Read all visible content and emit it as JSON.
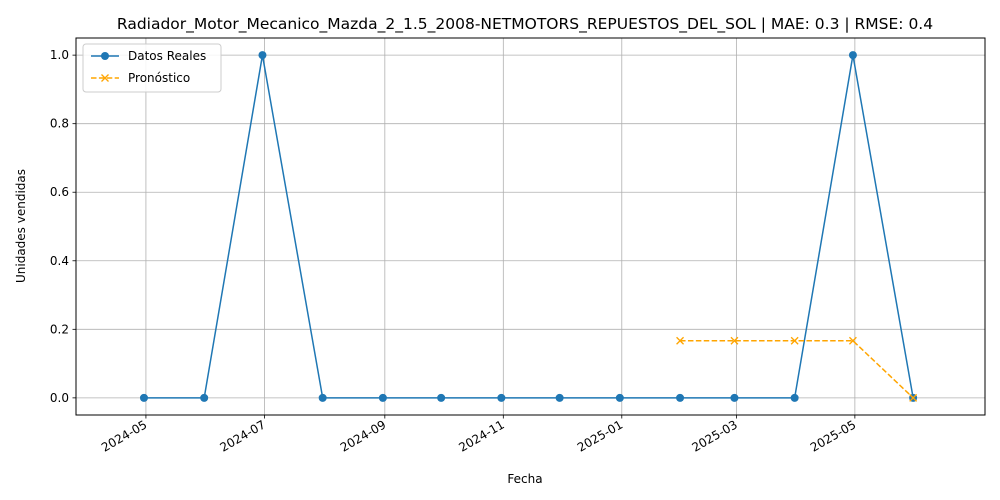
{
  "chart_data": {
    "type": "line",
    "title": "Radiador_Motor_Mecanico_Mazda_2_1.5_2008-NETMOTORS_REPUESTOS_DEL_SOL | MAE: 0.3 | RMSE: 0.4",
    "xlabel": "Fecha",
    "ylabel": "Unidades vendidas",
    "ylim": [
      -0.05,
      1.05
    ],
    "y_ticks": [
      0.0,
      0.2,
      0.4,
      0.6,
      0.8,
      1.0
    ],
    "y_tick_labels": [
      "0.0",
      "0.2",
      "0.4",
      "0.6",
      "0.8",
      "1.0"
    ],
    "x_ticks": [
      "2024-05-01",
      "2024-07-01",
      "2024-09-01",
      "2024-11-01",
      "2025-01-01",
      "2025-03-01",
      "2025-05-01"
    ],
    "x_tick_labels": [
      "2024-05",
      "2024-07",
      "2024-09",
      "2024-11",
      "2025-01",
      "2025-03",
      "2025-05"
    ],
    "xlim": [
      "2024-03-26",
      "2025-07-07"
    ],
    "grid": true,
    "legend_position": "top-left",
    "series": [
      {
        "name": "Datos Reales",
        "color": "#1f77b4",
        "style": "solid",
        "marker": "circle",
        "x": [
          "2024-04-30",
          "2024-05-31",
          "2024-06-30",
          "2024-07-31",
          "2024-08-31",
          "2024-09-30",
          "2024-10-31",
          "2024-11-30",
          "2024-12-31",
          "2025-01-31",
          "2025-02-28",
          "2025-03-31",
          "2025-04-30",
          "2025-05-31"
        ],
        "values": [
          0,
          0,
          1,
          0,
          0,
          0,
          0,
          0,
          0,
          0,
          0,
          0,
          1,
          0
        ]
      },
      {
        "name": "Pronóstico",
        "color": "#ffa500",
        "style": "dashed",
        "marker": "x",
        "x": [
          "2025-01-31",
          "2025-02-28",
          "2025-03-31",
          "2025-04-30",
          "2025-05-31"
        ],
        "values": [
          0.1667,
          0.1667,
          0.1667,
          0.1667,
          0.0
        ]
      }
    ]
  }
}
